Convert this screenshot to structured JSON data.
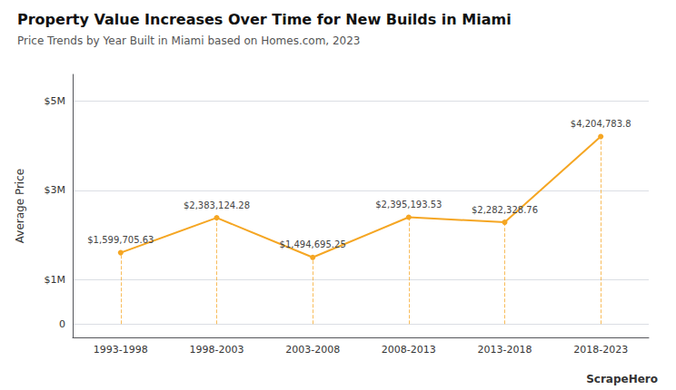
{
  "chart_data": {
    "type": "line",
    "title": "Property Value Increases Over Time for New Builds in Miami",
    "subtitle": "Price Trends by Year Built in Miami based on Homes.com, 2023",
    "y_label": "Average Price",
    "categories": [
      "1993-1998",
      "1998-2003",
      "2003-2008",
      "2008-2013",
      "2013-2018",
      "2018-2023"
    ],
    "values": [
      1599705.63,
      2383124.28,
      1494695.25,
      2395193.53,
      2282328.76,
      4204783.8
    ],
    "value_labels": [
      "$1,599,705.63",
      "$2,383,124.28",
      "$1,494,695.25",
      "$2,395,193.53",
      "$2,282,328.76",
      "$4,204,783.8"
    ],
    "data_labels": true,
    "color": "#F5A623",
    "ylim": [
      -300000,
      5600000
    ],
    "yticks": [
      0,
      {
        "value": 1000000,
        "label": "$1M"
      },
      {
        "value": 3000000,
        "label": "$3M"
      },
      {
        "value": 5000000,
        "label": "$5M"
      }
    ],
    "grid": true,
    "annotations": [
      "ScrapeHero"
    ]
  }
}
